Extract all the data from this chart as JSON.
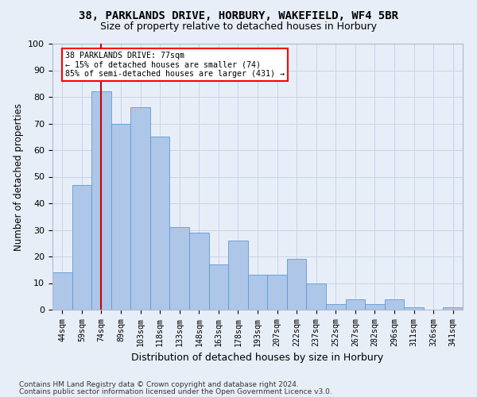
{
  "title1": "38, PARKLANDS DRIVE, HORBURY, WAKEFIELD, WF4 5BR",
  "title2": "Size of property relative to detached houses in Horbury",
  "xlabel": "Distribution of detached houses by size in Horbury",
  "ylabel": "Number of detached properties",
  "footer1": "Contains HM Land Registry data © Crown copyright and database right 2024.",
  "footer2": "Contains public sector information licensed under the Open Government Licence v3.0.",
  "categories": [
    "44sqm",
    "59sqm",
    "74sqm",
    "89sqm",
    "103sqm",
    "118sqm",
    "133sqm",
    "148sqm",
    "163sqm",
    "178sqm",
    "193sqm",
    "207sqm",
    "222sqm",
    "237sqm",
    "252sqm",
    "267sqm",
    "282sqm",
    "296sqm",
    "311sqm",
    "326sqm",
    "341sqm"
  ],
  "values": [
    14,
    47,
    82,
    70,
    76,
    65,
    31,
    29,
    17,
    26,
    13,
    13,
    19,
    10,
    2,
    4,
    2,
    4,
    1,
    0,
    1
  ],
  "bar_color": "#aec6e8",
  "bar_edge_color": "#5b9bd5",
  "red_line_x": 2,
  "annotation_text": "38 PARKLANDS DRIVE: 77sqm\n← 15% of detached houses are smaller (74)\n85% of semi-detached houses are larger (431) →",
  "annotation_box_color": "white",
  "annotation_box_edge_color": "red",
  "red_line_color": "#cc0000",
  "ylim": [
    0,
    100
  ],
  "grid_color": "#c8d4e8",
  "fig_bg_color": "#e8eef8",
  "plot_bg_color": "#e8eef8"
}
